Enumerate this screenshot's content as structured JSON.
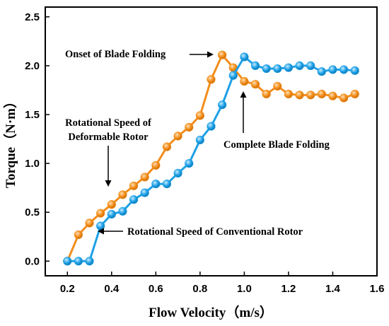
{
  "chart_data": {
    "type": "line",
    "xlabel": "Flow Velocity（m/s）",
    "ylabel": "Torque（N·m）",
    "xlim": [
      0.1,
      1.6
    ],
    "ylim": [
      -0.15,
      2.6
    ],
    "xticks": [
      "0.2",
      "0.4",
      "0.6",
      "0.8",
      "1.0",
      "1.2",
      "1.4",
      "1.6"
    ],
    "yticks": [
      "0.0",
      "0.5",
      "1.0",
      "1.5",
      "2.0",
      "2.5"
    ],
    "grid": false,
    "series": [
      {
        "color": "#f28e1c",
        "x": [
          0.2,
          0.25,
          0.3,
          0.35,
          0.4,
          0.45,
          0.5,
          0.55,
          0.6,
          0.65,
          0.7,
          0.75,
          0.8,
          0.85,
          0.9,
          0.95,
          1.0,
          1.05,
          1.1,
          1.15,
          1.2,
          1.25,
          1.3,
          1.35,
          1.4,
          1.45,
          1.5
        ],
        "y": [
          0.0,
          0.27,
          0.39,
          0.49,
          0.58,
          0.68,
          0.77,
          0.86,
          0.98,
          1.17,
          1.28,
          1.37,
          1.49,
          1.86,
          2.11,
          1.98,
          1.84,
          1.81,
          1.71,
          1.79,
          1.71,
          1.7,
          1.7,
          1.71,
          1.69,
          1.67,
          1.71
        ]
      },
      {
        "color": "#1ea0e6",
        "x": [
          0.2,
          0.25,
          0.3,
          0.35,
          0.4,
          0.45,
          0.5,
          0.55,
          0.6,
          0.65,
          0.7,
          0.75,
          0.8,
          0.85,
          0.9,
          0.95,
          1.0,
          1.05,
          1.1,
          1.15,
          1.2,
          1.25,
          1.3,
          1.35,
          1.4,
          1.45,
          1.5
        ],
        "y": [
          0.0,
          0.0,
          0.0,
          0.36,
          0.48,
          0.51,
          0.63,
          0.7,
          0.79,
          0.79,
          0.9,
          1.0,
          1.24,
          1.38,
          1.6,
          1.9,
          2.09,
          2.0,
          1.97,
          1.97,
          1.98,
          2.0,
          2.0,
          1.94,
          1.96,
          1.96,
          1.95
        ]
      }
    ],
    "annotations": [
      {
        "text": "Onset of Blade Folding"
      },
      {
        "text": "Rotational Speed of"
      },
      {
        "text": "Deformable Rotor"
      },
      {
        "text": "Complete Blade Folding"
      },
      {
        "text": "Rotational Speed of Conventional Rotor"
      }
    ]
  }
}
